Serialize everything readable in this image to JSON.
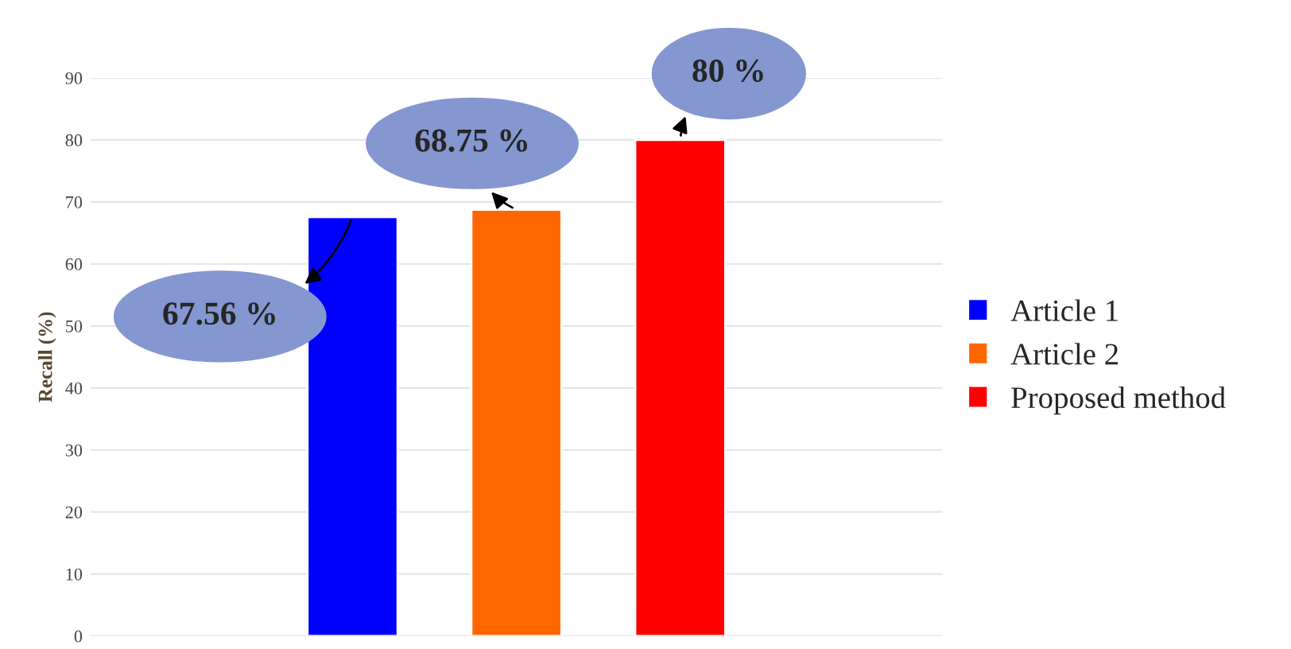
{
  "chart_data": {
    "type": "bar",
    "ylabel": "Recall (%)",
    "categories": [
      null,
      null,
      null
    ],
    "series": [
      {
        "name": "Article 1",
        "color": "#0000ff",
        "values": [
          67.56,
          null,
          null
        ],
        "value_labels": [
          "67.56 %",
          null,
          null
        ]
      },
      {
        "name": "Article 2",
        "color": "#ff6600",
        "values": [
          null,
          68.75,
          null
        ],
        "value_labels": [
          null,
          "68.75 %",
          null
        ]
      },
      {
        "name": "Proposed method",
        "color": "#ff0000",
        "values": [
          null,
          null,
          80
        ],
        "value_labels": [
          null,
          null,
          "80 %"
        ]
      }
    ],
    "ylim": [
      0,
      90
    ],
    "yticks": [
      0,
      10,
      20,
      30,
      40,
      50,
      60,
      70,
      80,
      90
    ],
    "grid": "y",
    "legend": "right",
    "tick_labels": "y"
  }
}
